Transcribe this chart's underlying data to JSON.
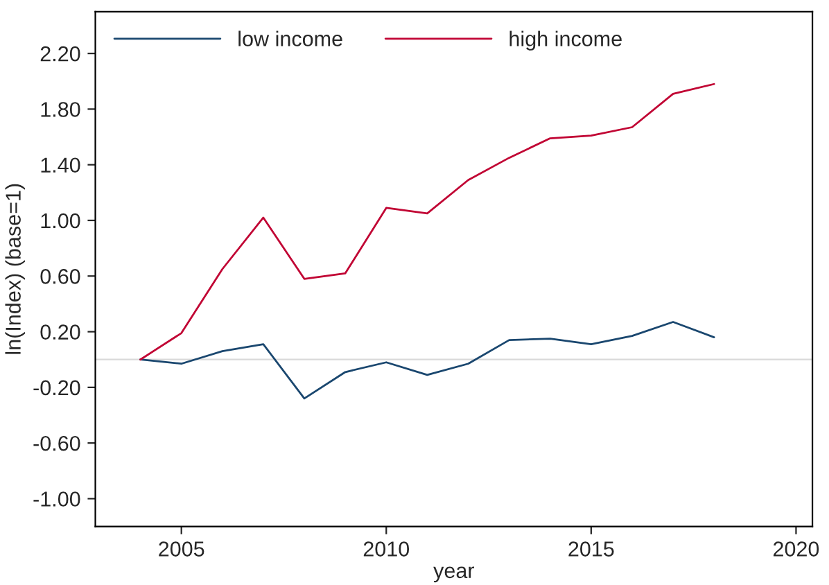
{
  "chart_data": {
    "type": "line",
    "xlabel": "year",
    "ylabel": "ln(Index) (base=1)",
    "x": [
      2004,
      2005,
      2006,
      2007,
      2008,
      2009,
      2010,
      2011,
      2012,
      2013,
      2014,
      2015,
      2016,
      2017,
      2018
    ],
    "series": [
      {
        "name": "low income",
        "color": "#1a476f",
        "values": [
          0,
          -0.03,
          0.06,
          0.11,
          -0.28,
          -0.09,
          -0.02,
          -0.11,
          -0.03,
          0.14,
          0.15,
          0.11,
          0.17,
          0.27,
          0.16
        ]
      },
      {
        "name": "high income",
        "color": "#c10534",
        "values": [
          0,
          0.19,
          0.65,
          1.02,
          0.58,
          0.62,
          1.09,
          1.05,
          1.29,
          1.45,
          1.59,
          1.61,
          1.67,
          1.91,
          1.98
        ]
      }
    ],
    "xlim": [
      2002.9,
      2020.4
    ],
    "xticks": [
      2005,
      2010,
      2015,
      2020
    ],
    "ylim": [
      -1.2,
      2.5
    ],
    "yticks": [
      {
        "value": -1.0,
        "label": "-1.00"
      },
      {
        "value": -0.6,
        "label": "-0.60"
      },
      {
        "value": -0.2,
        "label": "-0.20"
      },
      {
        "value": 0.2,
        "label": "0.20"
      },
      {
        "value": 0.6,
        "label": "0.60"
      },
      {
        "value": 1.0,
        "label": "1.00"
      },
      {
        "value": 1.4,
        "label": "1.40"
      },
      {
        "value": 1.8,
        "label": "1.80"
      },
      {
        "value": 2.2,
        "label": "2.20"
      }
    ],
    "ref_lines": [
      {
        "axis": "y",
        "value": 0,
        "color": "#d9d9d9"
      }
    ],
    "grid": false,
    "legend": "top left",
    "marker": "none",
    "line_style": "solid"
  }
}
